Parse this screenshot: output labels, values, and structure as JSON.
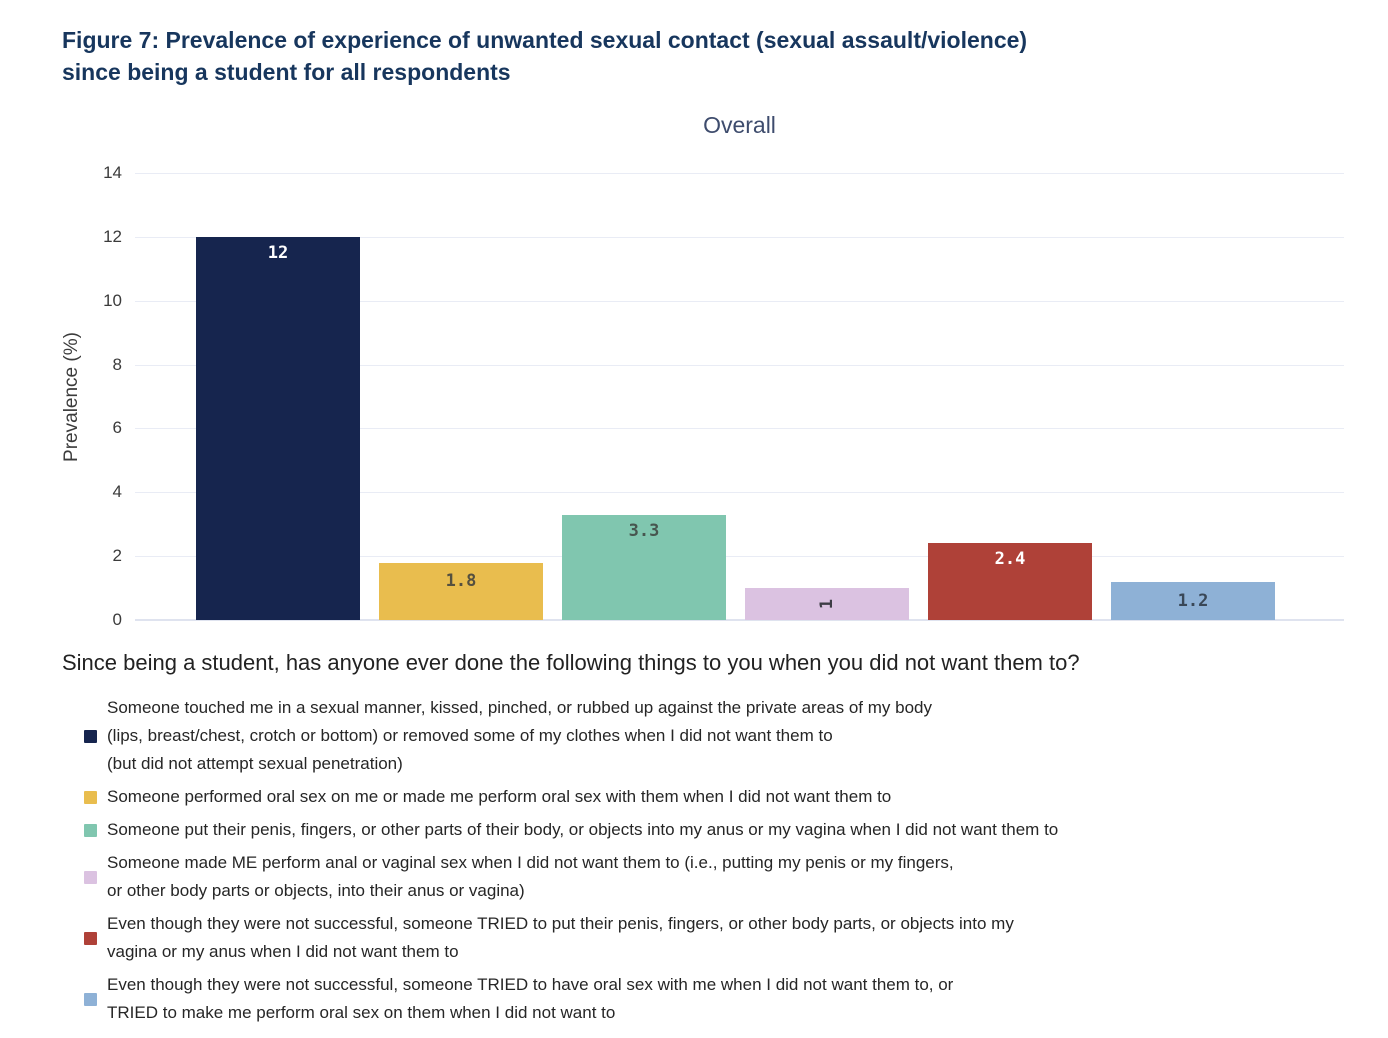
{
  "figure": {
    "title_lines": [
      "Figure 7: Prevalence of experience of unwanted sexual contact (sexual assault/violence)",
      "since being a student for all respondents"
    ]
  },
  "chart_data": {
    "type": "bar",
    "title": "Overall",
    "xlabel": "",
    "ylabel": "Prevalence (%)",
    "ylim": [
      0,
      14
    ],
    "yticks": [
      0,
      2,
      4,
      6,
      8,
      10,
      12,
      14
    ],
    "grid": true,
    "legend_position": "bottom",
    "legend_title": "Since being a student, has anyone ever done the following things to you when you did not want them to?",
    "bars": [
      {
        "value": 12,
        "display": "12",
        "color": "#16254e",
        "value_color": "#ffffff",
        "value_rotated": false,
        "legend_lines": [
          "Someone touched me in a sexual manner, kissed, pinched, or rubbed up against the private areas of my body",
          "(lips, breast/chest, crotch or bottom) or removed some of my clothes when I did not want them to",
          "(but did not attempt sexual penetration)"
        ]
      },
      {
        "value": 1.8,
        "display": "1.8",
        "color": "#e9bd4e",
        "value_color": "#55503f",
        "value_rotated": false,
        "legend_lines": [
          "Someone performed oral sex on me or made me perform oral sex with them when I did not want them to"
        ]
      },
      {
        "value": 3.3,
        "display": "3.3",
        "color": "#80c6af",
        "value_color": "#47564f",
        "value_rotated": false,
        "legend_lines": [
          "Someone put their penis, fingers, or other parts of their body, or objects into my anus or my vagina when I did not want them to"
        ]
      },
      {
        "value": 1,
        "display": "1",
        "color": "#dbc2e1",
        "value_color": "#3c3c44",
        "value_rotated": true,
        "legend_lines": [
          "Someone made ME perform anal or vaginal sex when I did not want them to (i.e., putting my penis or my fingers,",
          "or other body parts or objects, into their anus or vagina)"
        ]
      },
      {
        "value": 2.4,
        "display": "2.4",
        "color": "#af4138",
        "value_color": "#ffffff",
        "value_rotated": false,
        "legend_lines": [
          "Even though they were not successful, someone TRIED to put their penis, fingers, or other body parts, or objects into my",
          "vagina or my anus when I did not want them to"
        ]
      },
      {
        "value": 1.2,
        "display": "1.2",
        "color": "#8eb1d6",
        "value_color": "#394757",
        "value_rotated": false,
        "legend_lines": [
          "Even though they were not successful, someone TRIED to have oral sex with me when I did not want them to, or",
          "TRIED to make me perform oral sex on them when I did not want to"
        ]
      }
    ]
  }
}
